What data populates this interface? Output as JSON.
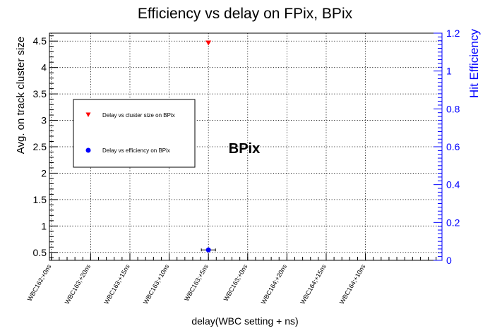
{
  "chart_data": {
    "type": "scatter",
    "title": "Efficiency vs delay on FPix, BPix",
    "xlabel": "delay(WBC setting + ns)",
    "ylabel": "Avg. on track  cluster size",
    "y2label": "Hit Efficiency",
    "categories": [
      "WBC162;+0ns",
      "WBC163;+20ns",
      "WBC163;+15ns",
      "WBC163;+10ns",
      "WBC163;+5ns",
      "WBC163;+0ns",
      "WBC164;+20ns",
      "WBC164;+15ns",
      "WBC164;+10ns"
    ],
    "ylim": [
      0.35,
      4.65
    ],
    "y2lim": [
      0,
      1.2
    ],
    "yticks": [
      "0.5",
      "1",
      "1.5",
      "2",
      "2.5",
      "3",
      "3.5",
      "4",
      "4.5"
    ],
    "y2ticks": [
      "0",
      "0.2",
      "0.4",
      "0.6",
      "0.8",
      "1",
      "1.2"
    ],
    "grid": true,
    "annotation": "BPix",
    "legend_position": "left",
    "series": [
      {
        "name": "Delay vs cluster size on BPix",
        "axis": "left",
        "marker": "triangle-down",
        "color": "#ff0000",
        "points": [
          {
            "x": "WBC163;+5ns",
            "y": 4.47
          }
        ]
      },
      {
        "name": "Delay vs efficiency on BPix",
        "axis": "right",
        "marker": "circle",
        "color": "#0000ff",
        "points": [
          {
            "x": "WBC163;+5ns",
            "y": 0.055
          }
        ]
      }
    ]
  }
}
